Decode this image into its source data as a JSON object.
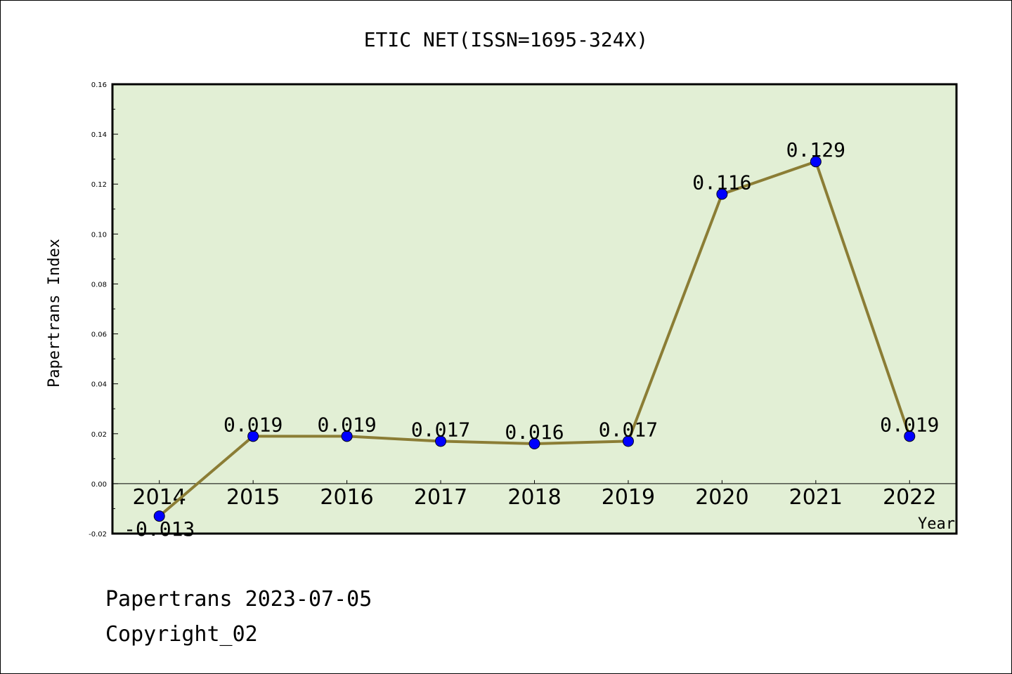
{
  "chart_data": {
    "type": "line",
    "title": "ETIC NET(ISSN=1695-324X)",
    "xlabel": "Year",
    "ylabel": "Papertrans Index",
    "categories": [
      "2014",
      "2015",
      "2016",
      "2017",
      "2018",
      "2019",
      "2020",
      "2021",
      "2022"
    ],
    "values": [
      -0.013,
      0.019,
      0.019,
      0.017,
      0.016,
      0.017,
      0.116,
      0.129,
      0.019
    ],
    "data_labels": [
      "-0.013",
      "0.019",
      "0.019",
      "0.017",
      "0.016",
      "0.017",
      "0.116",
      "0.129",
      "0.019"
    ],
    "ylim": [
      -0.02,
      0.16
    ],
    "yticks": [
      -0.02,
      0.0,
      0.02,
      0.04,
      0.06,
      0.08,
      0.1,
      0.12,
      0.14,
      0.16
    ],
    "ytick_labels": [
      "-0.02",
      "0.00",
      "0.02",
      "0.04",
      "0.06",
      "0.08",
      "0.10",
      "0.12",
      "0.14",
      "0.16"
    ],
    "grid": false,
    "colors": {
      "plot_background": "#e2efd5",
      "line": "#8b7d35",
      "marker": "#0000ff",
      "zero_line": "#000000"
    }
  },
  "footer": {
    "line1": "Papertrans 2023-07-05",
    "line2": "Copyright_02"
  }
}
